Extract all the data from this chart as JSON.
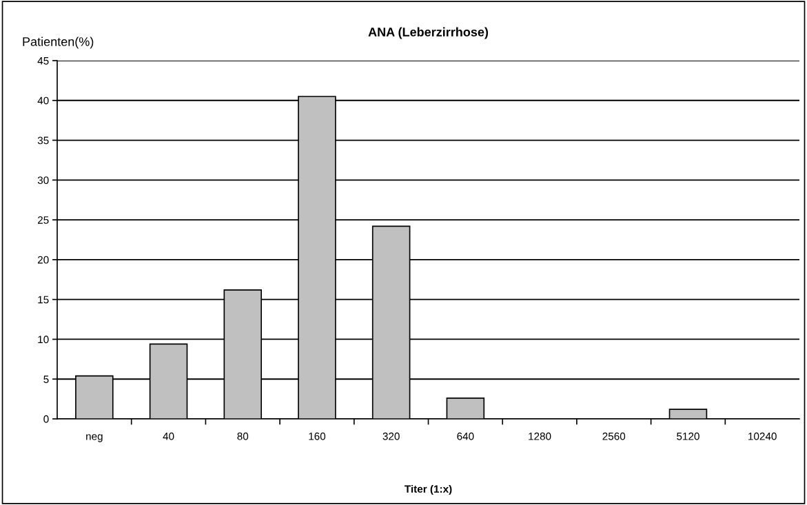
{
  "chart_data": {
    "type": "bar",
    "title": "ANA (Leberzirrhose)",
    "ylabel": "Patienten(%)",
    "xlabel": "Titer (1:x)",
    "categories": [
      "neg",
      "40",
      "80",
      "160",
      "320",
      "640",
      "1280",
      "2560",
      "5120",
      "10240"
    ],
    "values": [
      5.4,
      9.4,
      16.2,
      40.5,
      24.2,
      2.6,
      0,
      0,
      1.2,
      0
    ],
    "color": "#c0c0c0",
    "ylim": [
      0,
      45
    ],
    "yticks": [
      0,
      5,
      10,
      15,
      20,
      25,
      30,
      35,
      40,
      45
    ],
    "grid": "y"
  }
}
